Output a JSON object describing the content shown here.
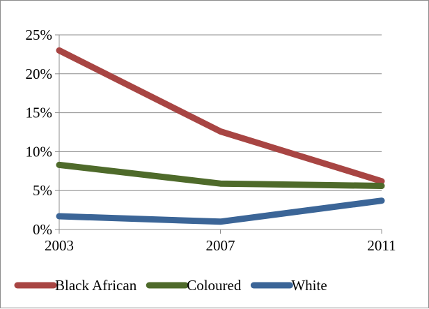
{
  "chart_data": {
    "type": "line",
    "title": "",
    "xlabel": "",
    "ylabel": "",
    "categories": [
      "2003",
      "2007",
      "2011"
    ],
    "ylim": [
      0,
      0.25
    ],
    "y_ticks": [
      {
        "value": 0.0,
        "label": "0%"
      },
      {
        "value": 0.05,
        "label": "5%"
      },
      {
        "value": 0.1,
        "label": "10%"
      },
      {
        "value": 0.15,
        "label": "15%"
      },
      {
        "value": 0.2,
        "label": "20%"
      },
      {
        "value": 0.25,
        "label": "25%"
      }
    ],
    "grid": true,
    "legend_position": "bottom",
    "series": [
      {
        "name": "Black African",
        "color": "#a84543",
        "values": [
          0.23,
          0.126,
          0.062
        ]
      },
      {
        "name": "Coloured",
        "color": "#4e6a2a",
        "values": [
          0.083,
          0.059,
          0.056
        ]
      },
      {
        "name": "White",
        "color": "#3b6597",
        "values": [
          0.017,
          0.01,
          0.037
        ]
      }
    ]
  }
}
